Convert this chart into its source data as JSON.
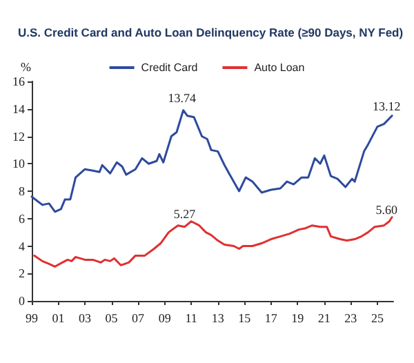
{
  "chart_data": {
    "type": "line",
    "title": "U.S. Credit Card and Auto Loan Delinquency Rate (≥90 Days, NY Fed)",
    "ylabel": "%",
    "legend": "top",
    "grid": false,
    "line_style": "solid",
    "marker": "none",
    "xlim": [
      1999,
      2026.2
    ],
    "xticks": [
      {
        "value": 1999,
        "label": "99"
      },
      {
        "value": 2001,
        "label": "01"
      },
      {
        "value": 2003,
        "label": "03"
      },
      {
        "value": 2005,
        "label": "05"
      },
      {
        "value": 2007,
        "label": "07"
      },
      {
        "value": 2009,
        "label": "09"
      },
      {
        "value": 2011,
        "label": "11"
      },
      {
        "value": 2013,
        "label": "13"
      },
      {
        "value": 2015,
        "label": "15"
      },
      {
        "value": 2017,
        "label": "17"
      },
      {
        "value": 2019,
        "label": "19"
      },
      {
        "value": 2021,
        "label": "21"
      },
      {
        "value": 2023,
        "label": "23"
      },
      {
        "value": 2025,
        "label": "25"
      }
    ],
    "ylim": [
      0,
      16
    ],
    "yticks": [
      0,
      2,
      4,
      6,
      8,
      10,
      12,
      14,
      16
    ],
    "annotations": [
      {
        "text": "13.74",
        "x": 2010.3,
        "y": 13.74
      },
      {
        "text": "5.27",
        "x": 2010.5,
        "y": 5.27
      },
      {
        "text": "13.12",
        "x": 2025.7,
        "y": 13.12
      },
      {
        "text": "5.60",
        "x": 2025.7,
        "y": 5.6
      }
    ],
    "series": [
      {
        "name": "Credit Card",
        "color": "#2e4a9e",
        "x": [
          1999,
          1999.8,
          2000.3,
          2000.75,
          2001.2,
          2001.5,
          2001.9,
          2002.3,
          2003,
          2003.6,
          2004.1,
          2004.3,
          2004.9,
          2005.4,
          2005.8,
          2006.1,
          2006.8,
          2007.3,
          2007.8,
          2008.4,
          2008.6,
          2008.9,
          2009.5,
          2009.9,
          2010.4,
          2010.7,
          2011.2,
          2011.8,
          2012.2,
          2012.5,
          2013,
          2013.5,
          2013.9,
          2014.6,
          2015.1,
          2015.6,
          2016.3,
          2017,
          2017.7,
          2018.2,
          2018.7,
          2019.3,
          2019.8,
          2020.3,
          2020.7,
          2021,
          2021.5,
          2022,
          2022.6,
          2023.1,
          2023.3,
          2024,
          2024.3,
          2025,
          2025.5,
          2026.1
        ],
        "values": [
          7.6,
          7.0,
          7.1,
          6.5,
          6.7,
          7.4,
          7.4,
          9.0,
          9.6,
          9.5,
          9.4,
          9.9,
          9.3,
          10.1,
          9.8,
          9.2,
          9.6,
          10.4,
          10.0,
          10.2,
          10.7,
          10.1,
          12.0,
          12.3,
          13.9,
          13.5,
          13.4,
          12.0,
          11.8,
          11.0,
          10.9,
          9.9,
          9.2,
          8.0,
          9.0,
          8.7,
          7.9,
          8.1,
          8.2,
          8.7,
          8.5,
          9.0,
          9.0,
          10.4,
          10.0,
          10.6,
          9.1,
          8.9,
          8.3,
          8.9,
          8.7,
          10.9,
          11.4,
          12.7,
          12.9,
          13.5
        ]
      },
      {
        "name": "Auto Loan",
        "color": "#e03030",
        "x": [
          1999.2,
          1999.8,
          2000.3,
          2000.75,
          2001.3,
          2001.7,
          2002,
          2002.3,
          2003,
          2003.6,
          2004.2,
          2004.5,
          2004.9,
          2005.2,
          2005.7,
          2006.3,
          2006.8,
          2007.5,
          2008.2,
          2008.7,
          2009.3,
          2010,
          2010.5,
          2011,
          2011.6,
          2012.1,
          2012.5,
          2013,
          2013.5,
          2014.2,
          2014.6,
          2014.9,
          2015.6,
          2016.3,
          2017,
          2017.7,
          2018.4,
          2019.1,
          2019.6,
          2020.1,
          2020.7,
          2021.2,
          2021.5,
          2022.2,
          2022.7,
          2023.3,
          2023.8,
          2024.3,
          2024.8,
          2025.5,
          2025.9,
          2026.1
        ],
        "values": [
          3.3,
          2.9,
          2.7,
          2.5,
          2.8,
          3.0,
          2.9,
          3.2,
          3.0,
          3.0,
          2.8,
          3.0,
          2.9,
          3.1,
          2.6,
          2.8,
          3.3,
          3.3,
          3.8,
          4.2,
          5.0,
          5.5,
          5.4,
          5.8,
          5.5,
          5.0,
          4.8,
          4.4,
          4.1,
          4.0,
          3.8,
          4.0,
          4.0,
          4.2,
          4.5,
          4.7,
          4.9,
          5.2,
          5.3,
          5.5,
          5.4,
          5.4,
          4.7,
          4.5,
          4.4,
          4.5,
          4.7,
          5.0,
          5.4,
          5.5,
          5.8,
          6.1
        ]
      }
    ]
  }
}
